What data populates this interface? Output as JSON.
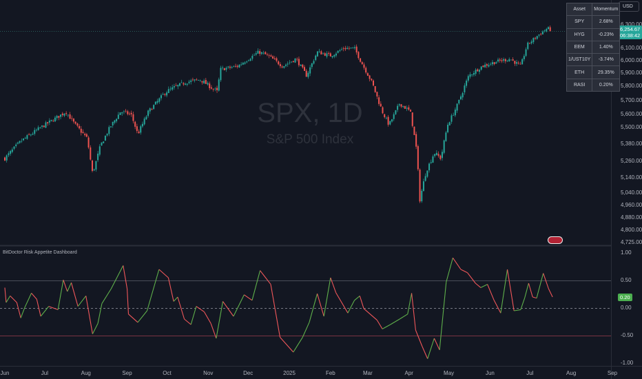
{
  "symbol_watermark": "SPX, 1D",
  "symbol_name": "S&P 500 Index",
  "currency": "USD",
  "last_price": "6,254.67",
  "countdown": "06:38:42",
  "price_axis": [
    "6,300.00",
    "6,100.00",
    "6,000.00",
    "5,900.00",
    "5,800.00",
    "5,700.00",
    "5,600.00",
    "5,500.00",
    "5,380.00",
    "5,260.00",
    "5,140.00",
    "5,040.00",
    "4,960.00",
    "4,880.00",
    "4,800.00",
    "4,725.00"
  ],
  "price_axis_values": [
    6300,
    6100,
    6000,
    5900,
    5800,
    5700,
    5600,
    5500,
    5380,
    5260,
    5140,
    5040,
    4960,
    4880,
    4800,
    4725
  ],
  "momentum_table": {
    "headers": [
      "Asset",
      "Momentum"
    ],
    "rows": [
      [
        "SPY",
        "2.68%"
      ],
      [
        "HYG",
        "-0.23%"
      ],
      [
        "EEM",
        "1.40%"
      ],
      [
        "1/UST10Y",
        "-3.74%"
      ],
      [
        "ETH",
        "29.35%"
      ],
      [
        "RASI",
        "0.20%"
      ]
    ]
  },
  "indicator": {
    "title": "BitDoctor Risk Appetite Dashboard",
    "current": "0.20",
    "axis": [
      "1.00",
      "0.50",
      "0.00",
      "-0.50",
      "-1.00"
    ],
    "axis_values": [
      1,
      0.5,
      0,
      -0.5,
      -1
    ],
    "upper_level": 0.5,
    "lower_level": -0.5
  },
  "time_axis": [
    "Jun",
    "Jul",
    "Aug",
    "Sep",
    "Oct",
    "Nov",
    "Dec",
    "2025",
    "Feb",
    "Mar",
    "Apr",
    "May",
    "Jun",
    "Jul",
    "Aug",
    "Sep"
  ],
  "time_axis_days": [
    0,
    30,
    61,
    92,
    122,
    153,
    183,
    214,
    245,
    273,
    304,
    334,
    365,
    395,
    426,
    457
  ],
  "colors": {
    "up": "#26a69a",
    "down": "#ef5350",
    "osc_up": "#5fb04b",
    "osc_down": "#f0575a"
  },
  "chart_data": {
    "type": "candlestick+line",
    "x_unit": "days since 2024-06-01",
    "price_path": [
      [
        0,
        5280
      ],
      [
        12,
        5400
      ],
      [
        27,
        5500
      ],
      [
        46,
        5620
      ],
      [
        53,
        5520
      ],
      [
        62,
        5420
      ],
      [
        66,
        5170
      ],
      [
        72,
        5370
      ],
      [
        79,
        5500
      ],
      [
        87,
        5620
      ],
      [
        95,
        5600
      ],
      [
        100,
        5450
      ],
      [
        108,
        5620
      ],
      [
        121,
        5760
      ],
      [
        136,
        5830
      ],
      [
        147,
        5850
      ],
      [
        154,
        5800
      ],
      [
        160,
        5760
      ],
      [
        162,
        5930
      ],
      [
        175,
        5955
      ],
      [
        191,
        6070
      ],
      [
        198,
        6040
      ],
      [
        209,
        5955
      ],
      [
        219,
        6015
      ],
      [
        227,
        5880
      ],
      [
        235,
        6070
      ],
      [
        245,
        6040
      ],
      [
        255,
        6100
      ],
      [
        263,
        6100
      ],
      [
        268,
        5990
      ],
      [
        276,
        5830
      ],
      [
        284,
        5620
      ],
      [
        289,
        5520
      ],
      [
        297,
        5680
      ],
      [
        305,
        5620
      ],
      [
        310,
        5320
      ],
      [
        312,
        4990
      ],
      [
        317,
        5190
      ],
      [
        323,
        5320
      ],
      [
        328,
        5280
      ],
      [
        333,
        5520
      ],
      [
        341,
        5680
      ],
      [
        349,
        5880
      ],
      [
        359,
        5955
      ],
      [
        369,
        5990
      ],
      [
        380,
        6015
      ],
      [
        388,
        5955
      ],
      [
        393,
        6130
      ],
      [
        401,
        6210
      ],
      [
        408,
        6270
      ],
      [
        411,
        6254.67
      ]
    ],
    "oscillator": [
      [
        0,
        0.37
      ],
      [
        1,
        0.1
      ],
      [
        4,
        0.22
      ],
      [
        9,
        0.1
      ],
      [
        12,
        -0.18
      ],
      [
        15,
        0.01
      ],
      [
        20,
        0.27
      ],
      [
        24,
        0.16
      ],
      [
        27,
        -0.15
      ],
      [
        33,
        0.03
      ],
      [
        40,
        -0.03
      ],
      [
        44,
        0.51
      ],
      [
        47,
        0.3
      ],
      [
        50,
        0.46
      ],
      [
        55,
        0.03
      ],
      [
        61,
        0.22
      ],
      [
        66,
        -0.47
      ],
      [
        70,
        -0.28
      ],
      [
        73,
        0.08
      ],
      [
        80,
        0.35
      ],
      [
        89,
        0.77
      ],
      [
        92,
        0.35
      ],
      [
        93,
        -0.11
      ],
      [
        100,
        -0.26
      ],
      [
        107,
        -0.05
      ],
      [
        116,
        0.7
      ],
      [
        123,
        0.55
      ],
      [
        127,
        0.12
      ],
      [
        130,
        0.2
      ],
      [
        135,
        -0.2
      ],
      [
        140,
        -0.3
      ],
      [
        144,
        0.03
      ],
      [
        150,
        -0.07
      ],
      [
        155,
        -0.28
      ],
      [
        159,
        -0.55
      ],
      [
        164,
        0.12
      ],
      [
        172,
        -0.15
      ],
      [
        180,
        0.24
      ],
      [
        186,
        0.14
      ],
      [
        192,
        0.68
      ],
      [
        200,
        0.43
      ],
      [
        207,
        -0.53
      ],
      [
        217,
        -0.8
      ],
      [
        224,
        -0.53
      ],
      [
        229,
        -0.26
      ],
      [
        235,
        0.26
      ],
      [
        240,
        -0.15
      ],
      [
        245,
        0.55
      ],
      [
        249,
        0.28
      ],
      [
        258,
        -0.09
      ],
      [
        263,
        0.14
      ],
      [
        267,
        0.22
      ],
      [
        270,
        -0.01
      ],
      [
        280,
        -0.22
      ],
      [
        284,
        -0.38
      ],
      [
        290,
        -0.3
      ],
      [
        297,
        -0.2
      ],
      [
        303,
        -0.11
      ],
      [
        306,
        0.27
      ],
      [
        309,
        -0.4
      ],
      [
        314,
        -0.7
      ],
      [
        318,
        -0.92
      ],
      [
        323,
        -0.55
      ],
      [
        327,
        -0.76
      ],
      [
        332,
        0.47
      ],
      [
        337,
        0.91
      ],
      [
        343,
        0.7
      ],
      [
        348,
        0.64
      ],
      [
        354,
        0.45
      ],
      [
        358,
        0.37
      ],
      [
        363,
        0.43
      ],
      [
        368,
        0.14
      ],
      [
        373,
        -0.09
      ],
      [
        378,
        0.7
      ],
      [
        383,
        -0.05
      ],
      [
        388,
        -0.03
      ],
      [
        391,
        0.18
      ],
      [
        394,
        0.45
      ],
      [
        397,
        0.2
      ],
      [
        400,
        0.18
      ],
      [
        405,
        0.63
      ],
      [
        409,
        0.35
      ],
      [
        412,
        0.2
      ]
    ]
  }
}
